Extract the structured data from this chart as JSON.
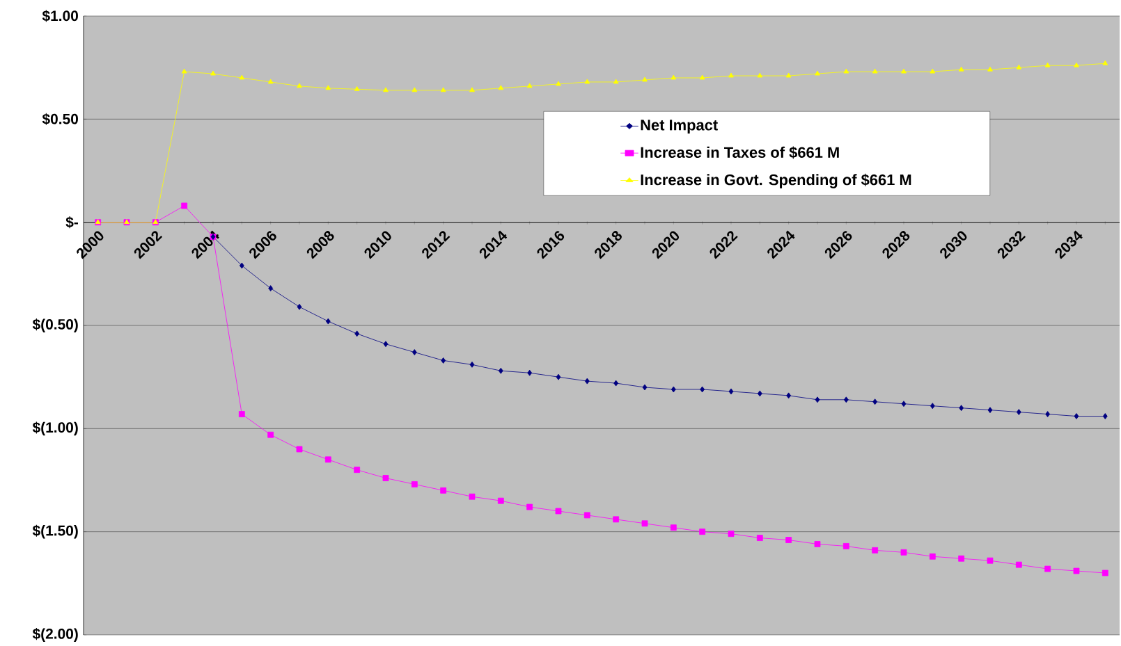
{
  "chart_data": {
    "type": "line",
    "categories": [
      "2000",
      null,
      "2002",
      null,
      "2004",
      null,
      "2006",
      null,
      "2008",
      null,
      "2010",
      null,
      "2012",
      null,
      "2014",
      null,
      "2016",
      null,
      "2018",
      null,
      "2020",
      null,
      "2022",
      null,
      "2024",
      null,
      "2026",
      null,
      "2028",
      null,
      "2030",
      null,
      "2032",
      null,
      "2034",
      null
    ],
    "series": [
      {
        "name": "Net Impact",
        "color": "#000080",
        "marker": "diamond",
        "values": [
          null,
          null,
          null,
          null,
          -0.07,
          -0.21,
          -0.32,
          -0.41,
          -0.48,
          -0.54,
          -0.59,
          -0.63,
          -0.67,
          -0.69,
          -0.72,
          -0.73,
          -0.75,
          -0.77,
          -0.78,
          -0.8,
          -0.81,
          -0.81,
          -0.82,
          -0.83,
          -0.84,
          -0.86,
          -0.86,
          -0.87,
          -0.88,
          -0.89,
          -0.9,
          -0.91,
          -0.92,
          -0.93,
          -0.94,
          -0.94
        ]
      },
      {
        "name": "Increase in Taxes of $661 M",
        "color": "#ff00ff",
        "marker": "square",
        "values": [
          0,
          0,
          0,
          0.08,
          -0.07,
          -0.93,
          -1.03,
          -1.1,
          -1.15,
          -1.2,
          -1.24,
          -1.27,
          -1.3,
          -1.33,
          -1.35,
          -1.38,
          -1.4,
          -1.42,
          -1.44,
          -1.46,
          -1.48,
          -1.5,
          -1.51,
          -1.53,
          -1.54,
          -1.56,
          -1.57,
          -1.59,
          -1.6,
          -1.62,
          -1.63,
          -1.64,
          -1.66,
          -1.68,
          -1.69,
          -1.7
        ]
      },
      {
        "name": "Increase in Govt. Spending of $661 M",
        "color": "#ffff00",
        "marker": "triangle",
        "values": [
          0,
          0,
          0,
          0.73,
          0.72,
          0.7,
          0.68,
          0.66,
          0.65,
          0.645,
          0.64,
          0.64,
          0.64,
          0.64,
          0.65,
          0.66,
          0.67,
          0.68,
          0.68,
          0.69,
          0.7,
          0.7,
          0.71,
          0.71,
          0.71,
          0.72,
          0.73,
          0.73,
          0.73,
          0.73,
          0.74,
          0.74,
          0.75,
          0.76,
          0.76,
          0.77
        ]
      }
    ],
    "ylim": [
      -2,
      1
    ],
    "yticks": [
      {
        "value": 1,
        "label": "$1.00"
      },
      {
        "value": 0.5,
        "label": "$0.50"
      },
      {
        "value": 0,
        "label": "$-"
      },
      {
        "value": -0.5,
        "label": "$(0.50)"
      },
      {
        "value": -1,
        "label": "$(1.00)"
      },
      {
        "value": -1.5,
        "label": "$(1.50)"
      },
      {
        "value": -2,
        "label": "$(2.00)"
      }
    ],
    "grid": "y",
    "legend": "top right",
    "line_style": "solid"
  }
}
